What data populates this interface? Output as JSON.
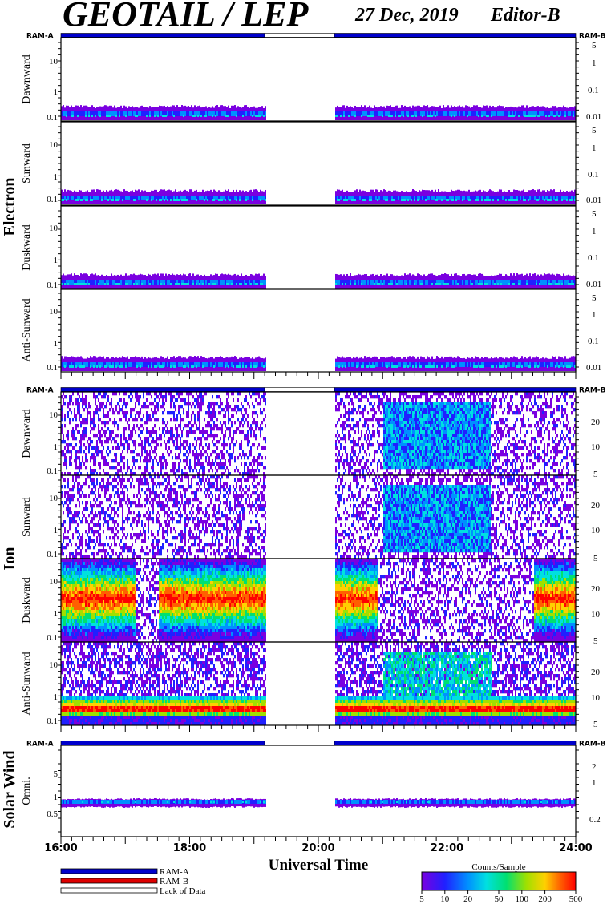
{
  "header": {
    "title": "GEOTAIL / LEP",
    "date": "27 Dec, 2019",
    "editor": "Editor-B"
  },
  "ram": {
    "left": "RAM-A",
    "right": "RAM-B"
  },
  "groups": [
    {
      "name": "Electron",
      "panels": [
        "Dawnward",
        "Sunward",
        "Duskward",
        "Anti-Sunward"
      ]
    },
    {
      "name": "Ion",
      "panels": [
        "Dawnward",
        "Sunward",
        "Duskward",
        "Anti-Sunward"
      ]
    },
    {
      "name": "Solar Wind",
      "panels": [
        "Omni."
      ]
    }
  ],
  "axes": {
    "electron_left_ticks": [
      "10",
      "1",
      "0.1"
    ],
    "electron_right_ticks": [
      "5",
      "1",
      "0.1",
      "0.01"
    ],
    "ion_left_ticks": [
      "10",
      "1",
      "0.1"
    ],
    "ion_right_ticks": [
      "20",
      "10",
      "5"
    ],
    "sw_left_ticks": [
      "5",
      "1",
      "0.5"
    ],
    "sw_right_ticks": [
      "2",
      "1",
      "0.2"
    ],
    "x_ticks": [
      "16:00",
      "18:00",
      "20:00",
      "22:00",
      "24:00"
    ],
    "x_label": "Universal Time"
  },
  "legend": {
    "ram_a": "RAM-A",
    "ram_b": "RAM-B",
    "lack": "Lack of Data",
    "ram_a_color": "#0000cc",
    "ram_b_color": "#dd0000"
  },
  "colorbar": {
    "title": "Counts/Sample",
    "ticks": [
      "5",
      "10",
      "20",
      "50",
      "100",
      "200",
      "500"
    ],
    "colors": [
      "#7a00e0",
      "#2020ff",
      "#0090ff",
      "#00e0e0",
      "#00e070",
      "#a0e000",
      "#ffd000",
      "#ff6000",
      "#ff0000"
    ]
  },
  "chart_data": {
    "type": "heatmap",
    "time_range": [
      "16:00",
      "24:00"
    ],
    "data_gap": [
      "19:10",
      "20:15"
    ],
    "ram_bar": [
      {
        "from": "16:00",
        "to": "19:10",
        "state": "RAM-A"
      },
      {
        "from": "19:10",
        "to": "20:15",
        "state": "Lack of Data"
      },
      {
        "from": "20:15",
        "to": "24:00",
        "state": "RAM-A"
      }
    ],
    "electron": {
      "count_level": "low",
      "panels": [
        "Dawnward",
        "Sunward",
        "Duskward",
        "Anti-Sunward"
      ],
      "occupied_energy": "lowest band near 0.1"
    },
    "ion": {
      "Dawnward": {
        "intense_interval": [
          "21:00",
          "22:40"
        ],
        "peak_color": "#00c0ff"
      },
      "Sunward": {
        "intense_interval": [
          "21:00",
          "22:40"
        ],
        "peak_color": "#00c0ff"
      },
      "Duskward": {
        "intense_intervals": [
          [
            "16:00",
            "17:10"
          ],
          [
            "17:30",
            "19:10"
          ],
          [
            "20:15",
            "20:55"
          ],
          [
            "23:20",
            "24:00"
          ]
        ],
        "peak_color": "#ff0000"
      },
      "Anti-Sunward": {
        "persistent_band_energy": "0.5-1",
        "peak_color": "#ff0000"
      }
    },
    "solar_wind": {
      "band_energy": "0.6-0.8",
      "peak_color": "#00e0e0"
    }
  }
}
